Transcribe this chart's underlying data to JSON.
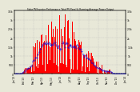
{
  "title": "Solar PV/Inverter Performance Total PV Panel & Running Average Power Output",
  "background_color": "#e8e8d8",
  "plot_bg": "#e8e8d8",
  "grid_color": "#bbbbbb",
  "bar_color": "#ff0000",
  "line_color": "#0000dd",
  "x_tick_labels": [
    "Jan'13",
    "Feb'13",
    "Mar'13",
    "Apr'13",
    "May'13",
    "Jun'13",
    "Jul'13",
    "Aug'13",
    "Sep'13",
    "Oct'13",
    "Nov'13",
    "Dec'13",
    "Jan'14"
  ],
  "y_max": 3500,
  "y_ticks": [
    0,
    500,
    1000,
    1500,
    2000,
    2500,
    3000,
    3500
  ],
  "y_tick_labels": [
    "0",
    "500",
    "1k",
    "1.5k",
    "2k",
    "2.5k",
    "3k",
    "3.5k"
  ],
  "title_fontsize": 2.0,
  "tick_fontsize": 2.2,
  "n_days": 365
}
